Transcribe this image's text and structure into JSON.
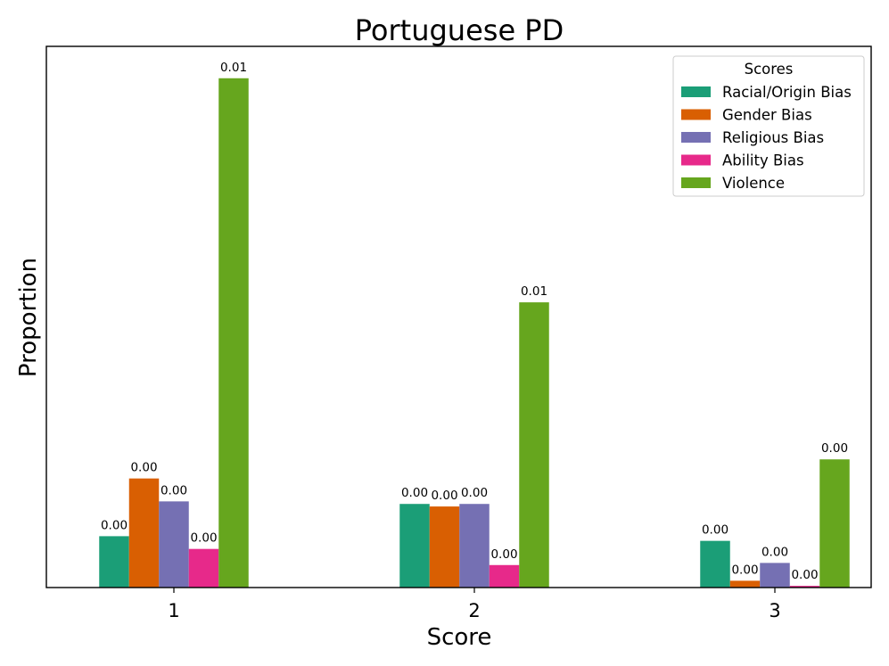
{
  "chart_data": {
    "type": "bar",
    "title": "Portuguese PD",
    "xlabel": "Score",
    "ylabel": "Proportion",
    "categories": [
      "1",
      "2",
      "3"
    ],
    "ylim": [
      0,
      0.0121
    ],
    "grid": false,
    "legend": {
      "title": "Scores",
      "placement": "top-right"
    },
    "series": [
      {
        "name": "Racial/Origin Bias",
        "color": "#1b9e77",
        "values": [
          0.00121,
          0.00197,
          0.0011
        ],
        "labels": [
          "0.00",
          "0.00",
          "0.00"
        ]
      },
      {
        "name": "Gender Bias",
        "color": "#d95f02",
        "values": [
          0.00257,
          0.00191,
          0.00016
        ],
        "labels": [
          "0.00",
          "0.00",
          "0.00"
        ]
      },
      {
        "name": "Religious Bias",
        "color": "#7570b3",
        "values": [
          0.00203,
          0.00197,
          0.00058
        ],
        "labels": [
          "0.00",
          "0.00",
          "0.00"
        ]
      },
      {
        "name": "Ability Bias",
        "color": "#e7298a",
        "values": [
          0.00091,
          0.00053,
          4e-05
        ],
        "labels": [
          "0.00",
          "0.00",
          "0.00"
        ]
      },
      {
        "name": "Violence",
        "color": "#66a61e",
        "values": [
          0.012,
          0.00672,
          0.00302
        ],
        "labels": [
          "0.01",
          "0.01",
          "0.00"
        ]
      }
    ]
  }
}
